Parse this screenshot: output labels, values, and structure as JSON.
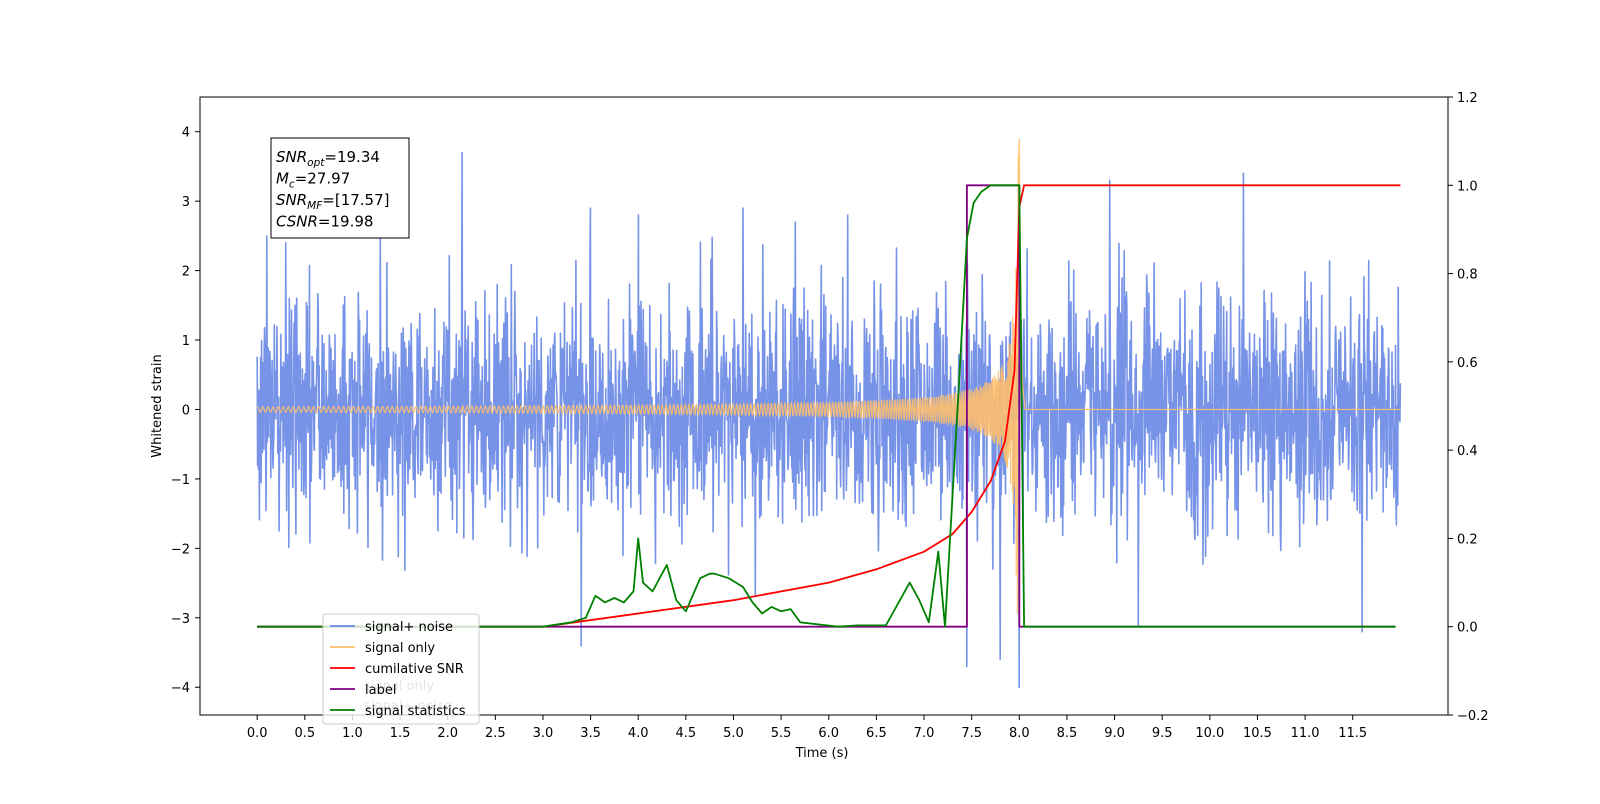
{
  "chart_data": {
    "type": "line",
    "title": "",
    "xlabel": "Time (s)",
    "ylabel": "Whitened strain",
    "y2label": "",
    "xlim": [
      -0.6,
      12.5
    ],
    "ylim": [
      -4.4,
      4.5
    ],
    "y2lim": [
      -0.2,
      1.2
    ],
    "x_ticks": [
      0.0,
      0.5,
      1.0,
      1.5,
      2.0,
      2.5,
      3.0,
      3.5,
      4.0,
      4.5,
      5.0,
      5.5,
      6.0,
      6.5,
      7.0,
      7.5,
      8.0,
      8.5,
      9.0,
      9.5,
      10.0,
      10.5,
      11.0,
      11.5
    ],
    "x_tick_labels": [
      "0.0",
      "0.5",
      "1.0",
      "1.5",
      "2.0",
      "2.5",
      "3.0",
      "3.5",
      "4.0",
      "4.5",
      "5.0",
      "5.5",
      "6.0",
      "6.5",
      "7.0",
      "7.5",
      "8.0",
      "8.5",
      "9.0",
      "9.5",
      "10.0",
      "10.5",
      "11.0",
      "11.5"
    ],
    "y_ticks": [
      -4,
      -3,
      -2,
      -1,
      0,
      1,
      2,
      3,
      4
    ],
    "y_tick_labels": [
      "−4",
      "−3",
      "−2",
      "−1",
      "0",
      "1",
      "2",
      "3",
      "4"
    ],
    "y2_ticks": [
      -0.2,
      0.0,
      0.2,
      0.4,
      0.6,
      0.8,
      1.0,
      1.2
    ],
    "y2_tick_labels": [
      "−0.2",
      "0.0",
      "0.2",
      "0.4",
      "0.6",
      "0.8",
      "1.0",
      "1.2"
    ],
    "grid": false,
    "legend_position": "lower-left",
    "colors": {
      "signal_noise": "#6b8ae6",
      "signal_only": "#ffbf6b",
      "cumulative_snr": "#ff0000",
      "label": "#800080",
      "signal_statistics": "#008000",
      "axis": "#000000"
    },
    "series": [
      {
        "name": "signal+ noise",
        "axis": "left",
        "description_shape": "dense noise, sd~0.85, spanning 0.0 to 12.0 s",
        "range": [
          0.0,
          12.0
        ],
        "peaks": [
          [
            0.1,
            2.5
          ],
          [
            0.3,
            2.4
          ],
          [
            2.15,
            3.7
          ],
          [
            3.5,
            2.9
          ],
          [
            4.0,
            -3.4
          ],
          [
            4.0,
            2.8
          ],
          [
            5.1,
            2.9
          ],
          [
            5.65,
            2.7
          ],
          [
            6.2,
            2.8
          ],
          [
            7.45,
            -3.7
          ],
          [
            7.8,
            -3.6
          ],
          [
            8.0,
            4.1
          ],
          [
            8.0,
            -4.0
          ],
          [
            8.95,
            3.3
          ],
          [
            9.25,
            -3.1
          ],
          [
            10.35,
            3.4
          ],
          [
            11.6,
            -3.2
          ],
          [
            3.4,
            -3.4
          ]
        ]
      },
      {
        "name": "signal only",
        "axis": "left",
        "description_shape": "chirp from 3.0 s growing to merger at 8.0 s",
        "merger_time": 8.0,
        "max_amplitude": 3.9
      },
      {
        "name": "cumilative SNR",
        "axis": "right",
        "x": [
          0.0,
          2.0,
          3.0,
          4.0,
          5.0,
          6.0,
          6.5,
          7.0,
          7.3,
          7.5,
          7.7,
          7.85,
          7.95,
          8.0,
          8.05,
          12.0
        ],
        "y": [
          0.0,
          0.0,
          0.0,
          0.03,
          0.06,
          0.1,
          0.13,
          0.17,
          0.21,
          0.26,
          0.33,
          0.42,
          0.58,
          0.95,
          1.0,
          1.0
        ]
      },
      {
        "name": "label",
        "axis": "right",
        "x": [
          0.0,
          7.45,
          7.45,
          8.0,
          8.0,
          11.95
        ],
        "y": [
          0.0,
          0.0,
          1.0,
          1.0,
          0.0,
          0.0
        ]
      },
      {
        "name": "signal statistics",
        "axis": "right",
        "x": [
          0.0,
          3.0,
          3.3,
          3.45,
          3.55,
          3.65,
          3.75,
          3.85,
          3.95,
          4.0,
          4.05,
          4.15,
          4.3,
          4.4,
          4.5,
          4.65,
          4.75,
          4.8,
          4.95,
          5.1,
          5.2,
          5.3,
          5.4,
          5.5,
          5.6,
          5.7,
          5.9,
          6.1,
          6.3,
          6.6,
          6.85,
          6.95,
          7.05,
          7.15,
          7.22,
          7.3,
          7.38,
          7.45,
          7.52,
          7.6,
          7.7,
          8.0,
          8.05,
          11.95
        ],
        "y": [
          0.0,
          0.0,
          0.01,
          0.02,
          0.07,
          0.055,
          0.065,
          0.055,
          0.08,
          0.2,
          0.1,
          0.08,
          0.14,
          0.06,
          0.035,
          0.11,
          0.12,
          0.12,
          0.11,
          0.09,
          0.055,
          0.03,
          0.045,
          0.035,
          0.04,
          0.01,
          0.005,
          0.0,
          0.003,
          0.003,
          0.1,
          0.06,
          0.01,
          0.17,
          0.0,
          0.3,
          0.6,
          0.88,
          0.96,
          0.985,
          1.0,
          1.0,
          0.0,
          0.0
        ]
      }
    ],
    "legend": [
      {
        "key": "signal_noise",
        "label": "signal+ noise"
      },
      {
        "key": "signal_only",
        "label": "signal only"
      },
      {
        "key": "cumulative_snr",
        "label": "cumilative SNR"
      },
      {
        "key": "label",
        "label": "label"
      },
      {
        "key": "signal_statistics",
        "label": "signal statistics"
      }
    ],
    "annotation": {
      "lines": [
        {
          "base": "SNR",
          "sub": "opt",
          "value": "=19.34"
        },
        {
          "base": "M",
          "sub": "c",
          "value": "=27.97"
        },
        {
          "base": "SNR",
          "sub": "MF",
          "value": "=[17.57]"
        },
        {
          "base": "CSNR",
          "sub": "",
          "value": "=19.98"
        }
      ]
    },
    "legend_ghost_labels": [
      "signal only",
      "signal+ noise"
    ]
  }
}
